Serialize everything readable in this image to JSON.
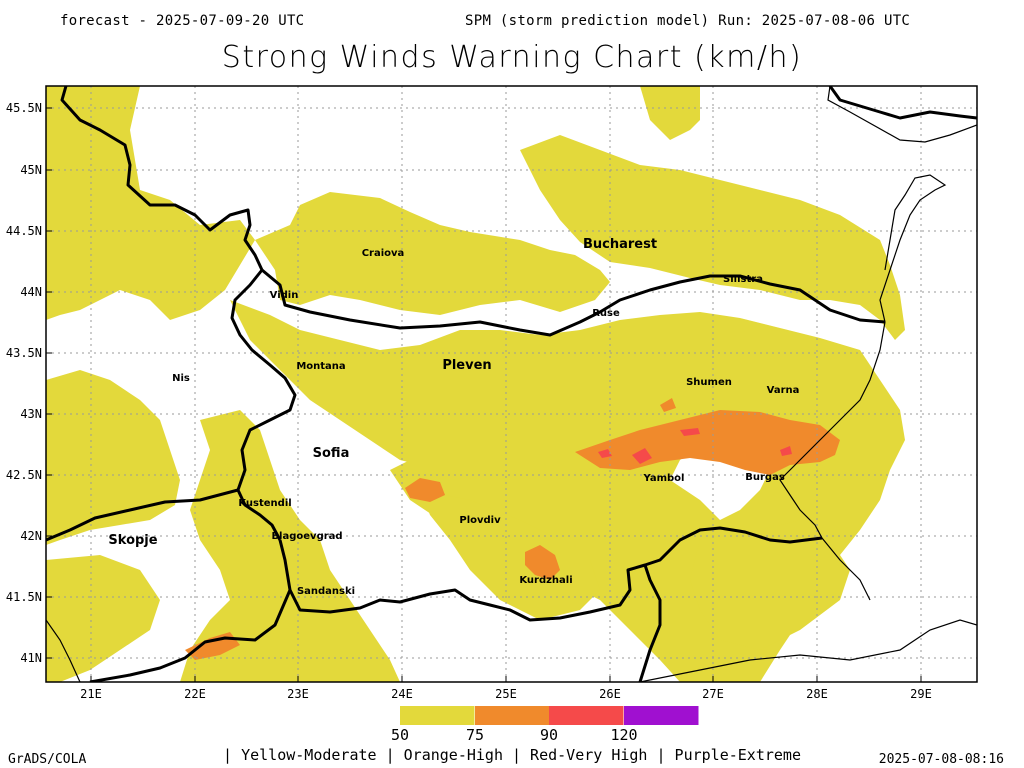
{
  "header": {
    "left": "forecast - 2025-07-09-20 UTC",
    "right": "SPM (storm prediction model) Run: 2025-07-08-06 UTC"
  },
  "title": "Strong Winds Warning Chart (km/h)",
  "axes": {
    "lat_labels": [
      "45.5N",
      "45N",
      "44.5N",
      "44N",
      "43.5N",
      "43N",
      "42.5N",
      "42N",
      "41.5N",
      "41N"
    ],
    "lon_labels": [
      "21E",
      "22E",
      "23E",
      "24E",
      "25E",
      "26E",
      "27E",
      "28E",
      "29E"
    ],
    "grid": "dotted"
  },
  "cities": [
    {
      "name": "Bucharest",
      "size": "large"
    },
    {
      "name": "Craiova",
      "size": "small"
    },
    {
      "name": "Silistra",
      "size": "small"
    },
    {
      "name": "Vidin",
      "size": "small"
    },
    {
      "name": "Ruse",
      "size": "small"
    },
    {
      "name": "Montana",
      "size": "small"
    },
    {
      "name": "Pleven",
      "size": "large"
    },
    {
      "name": "Nis",
      "size": "small"
    },
    {
      "name": "Shumen",
      "size": "small"
    },
    {
      "name": "Varna",
      "size": "small"
    },
    {
      "name": "Sofia",
      "size": "large"
    },
    {
      "name": "Yambol",
      "size": "small"
    },
    {
      "name": "Burgas",
      "size": "small"
    },
    {
      "name": "Kustendil",
      "size": "small"
    },
    {
      "name": "Plovdiv",
      "size": "small"
    },
    {
      "name": "Skopje",
      "size": "large"
    },
    {
      "name": "Blagoevgrad",
      "size": "small"
    },
    {
      "name": "Kurdzhali",
      "size": "small"
    },
    {
      "name": "Sandanski",
      "size": "small"
    }
  ],
  "legend": {
    "colors": [
      "#e3d93b",
      "#f08a2c",
      "#f54a4a",
      "#a010d0"
    ],
    "labels": [
      "50",
      "75",
      "90",
      "120"
    ],
    "description": "| Yellow-Moderate | Orange-High | Red-Very High | Purple-Extreme"
  },
  "footer": {
    "left": "GrADS/COLA",
    "right": "2025-07-08-08:16"
  },
  "colors": {
    "yellow": "#e3d93b",
    "orange": "#f08a2c",
    "red": "#f54a4a",
    "purple": "#a010d0",
    "border": "#000000",
    "grid": "#9a9a9a"
  }
}
